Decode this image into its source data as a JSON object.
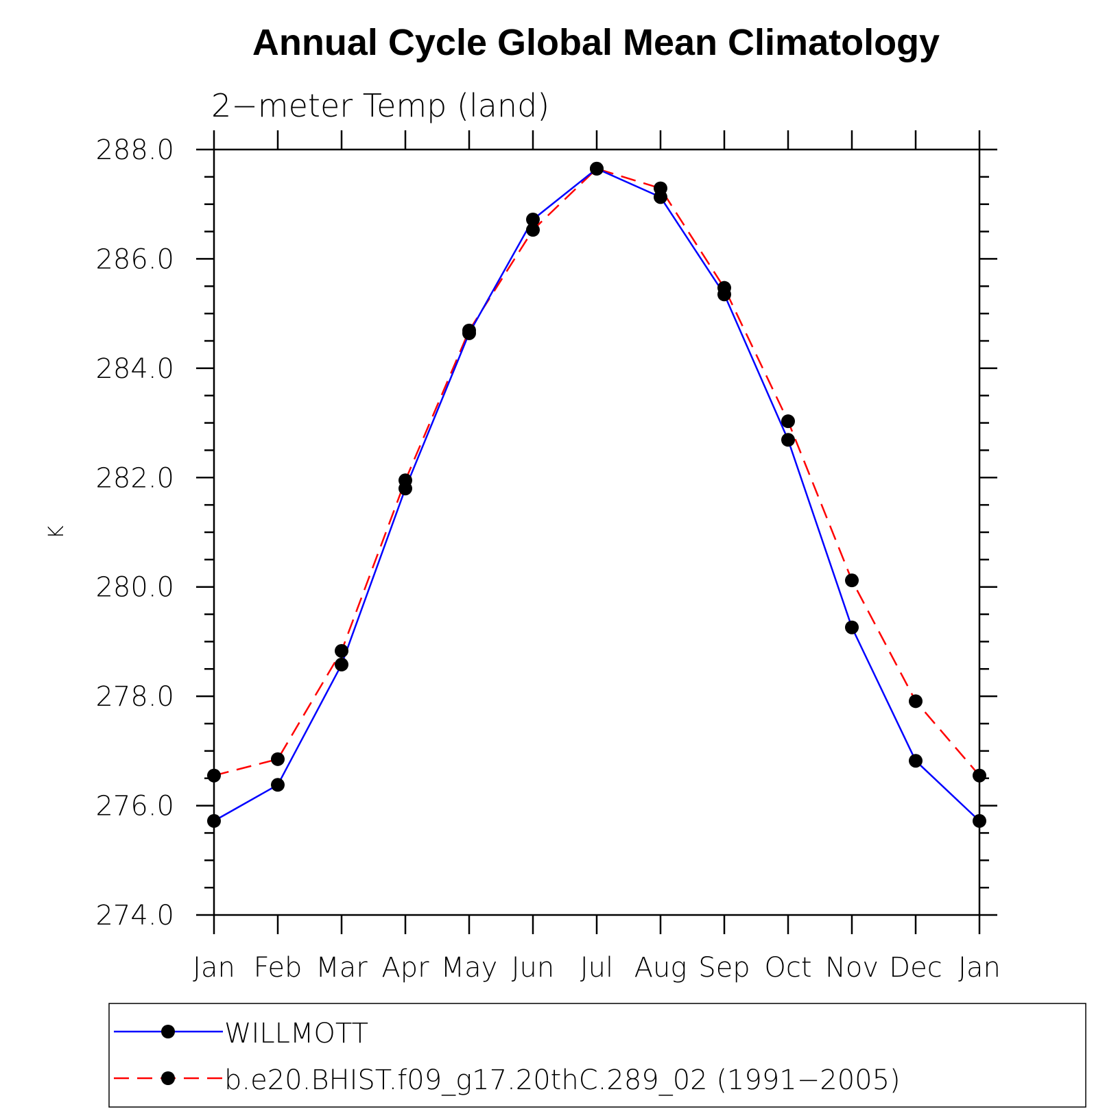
{
  "chart_data": {
    "type": "line",
    "title": "Annual Cycle Global Mean Climatology",
    "subtitle": "2−meter Temp (land)",
    "xlabel": "",
    "ylabel": "K",
    "ylim": [
      274.0,
      288.0
    ],
    "y_major_ticks": [
      "274.0",
      "276.0",
      "278.0",
      "280.0",
      "282.0",
      "284.0",
      "286.0",
      "288.0"
    ],
    "y_minor_step": 0.5,
    "categories": [
      "Jan",
      "Feb",
      "Mar",
      "Apr",
      "May",
      "Jun",
      "Jul",
      "Aug",
      "Sep",
      "Oct",
      "Nov",
      "Dec",
      "Jan"
    ],
    "grid": false,
    "legend_position": "bottom",
    "series": [
      {
        "name": "WILLMOTT",
        "color": "#0000ff",
        "style": "solid",
        "marker": "dot",
        "values": [
          275.72,
          276.38,
          278.58,
          281.8,
          284.64,
          286.72,
          287.65,
          287.13,
          285.35,
          282.69,
          279.26,
          276.82,
          275.72
        ]
      },
      {
        "name": "b.e20.BHIST.f09_g17.20thC.289_02 (1991−2005)",
        "color": "#ff0000",
        "style": "dashed",
        "marker": "dot",
        "values": [
          276.55,
          276.85,
          278.83,
          281.95,
          284.69,
          286.53,
          287.65,
          287.29,
          285.47,
          283.03,
          280.12,
          277.91,
          276.55
        ]
      }
    ]
  }
}
